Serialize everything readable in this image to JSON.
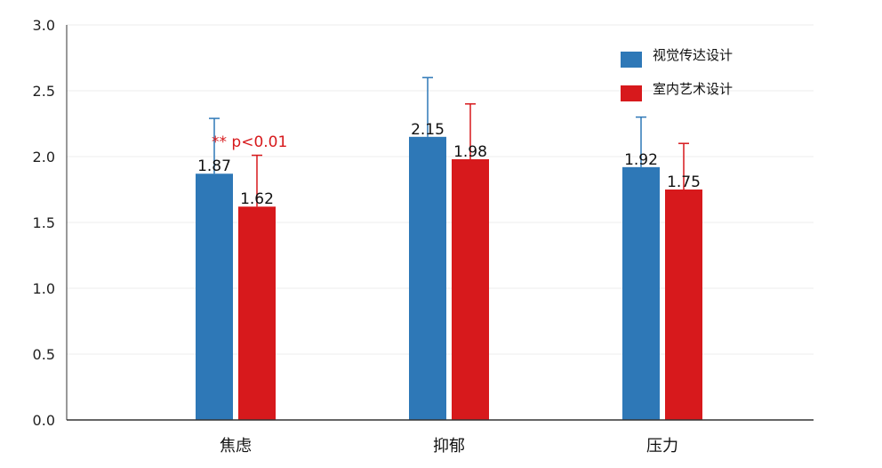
{
  "chart_data": {
    "type": "bar",
    "categories": [
      "焦虑",
      "抑郁",
      "压力"
    ],
    "series": [
      {
        "name": "视觉传达设计",
        "color": "#2e78b7",
        "values": [
          1.87,
          2.15,
          1.92
        ],
        "error_upper": [
          2.29,
          2.6,
          2.3
        ]
      },
      {
        "name": "室内艺术设计",
        "color": "#d7191c",
        "values": [
          1.62,
          1.98,
          1.75
        ],
        "error_upper": [
          2.01,
          2.4,
          2.1
        ]
      }
    ],
    "ylim": [
      0,
      3.0
    ],
    "yticks": [
      "0.0",
      "0.5",
      "1.0",
      "1.5",
      "2.0",
      "2.5",
      "3.0"
    ],
    "grid": true,
    "legend_position": "top-right",
    "annotation": {
      "text": "** p<0.01",
      "color": "#d7191c",
      "category": "焦虑"
    }
  }
}
